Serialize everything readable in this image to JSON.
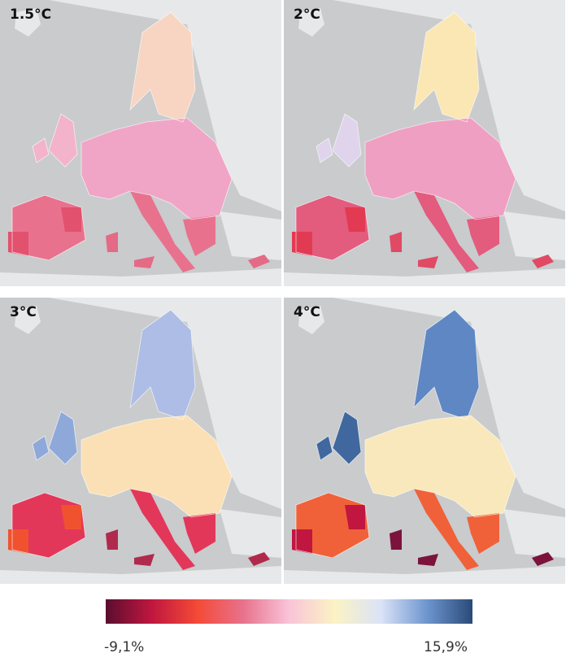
{
  "panels": [
    {
      "label": "1.5°C",
      "colors": {
        "north": "#f7d5c2",
        "central": "#f0a5c7",
        "west": "#f3b3cb",
        "south": "#e8728d",
        "accent": "#e2516d",
        "islands": "#e46a86"
      }
    },
    {
      "label": "2°C",
      "colors": {
        "north": "#fbe7b3",
        "central": "#ef9fc2",
        "west": "#e0d4ec",
        "south": "#e35b7d",
        "accent": "#e23a52",
        "islands": "#e04a64"
      }
    },
    {
      "label": "3°C",
      "colors": {
        "north": "#aebde6",
        "central": "#fbe0b6",
        "west": "#8ea9d9",
        "south": "#e3375a",
        "accent": "#f05230",
        "islands": "#b02a4e"
      }
    },
    {
      "label": "4°C",
      "colors": {
        "north": "#5e87c4",
        "central": "#f8e8bb",
        "west": "#40689e",
        "south": "#f06139",
        "accent": "#c0163f",
        "islands": "#7c133d"
      }
    }
  ],
  "legend": {
    "min_label": "-9,1%",
    "max_label": "15,9%",
    "colors": [
      "#5a0e2f",
      "#c0163f",
      "#f44a36",
      "#e8728d",
      "#f9c4d8",
      "#fbf3c4",
      "#dbe3f7",
      "#6e96cf",
      "#2a4a78"
    ]
  }
}
